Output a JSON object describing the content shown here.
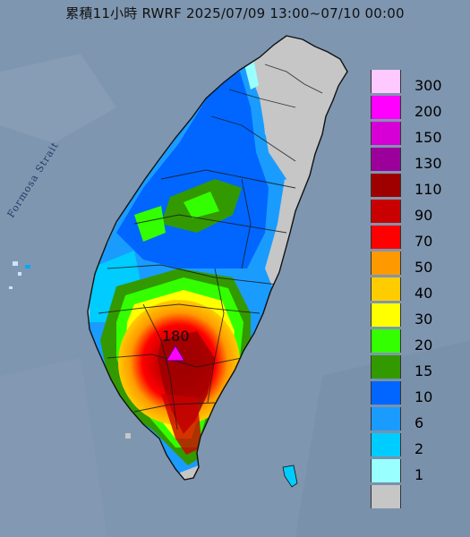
{
  "title": "累積11小時 RWRF 2025/07/09 13:00~07/10 00:00",
  "sea_label": "Formosa Strait",
  "max_marker": {
    "label": "180",
    "icon": "triangle-marker-icon"
  },
  "legend": [
    {
      "label": "300",
      "color": "#ffc8ff"
    },
    {
      "label": "200",
      "color": "#ff00ff"
    },
    {
      "label": "150",
      "color": "#d600d6"
    },
    {
      "label": "130",
      "color": "#9b009b"
    },
    {
      "label": "110",
      "color": "#9e0000"
    },
    {
      "label": "90",
      "color": "#c90000"
    },
    {
      "label": "70",
      "color": "#ff0000"
    },
    {
      "label": "50",
      "color": "#ff9900"
    },
    {
      "label": "40",
      "color": "#ffcc00"
    },
    {
      "label": "30",
      "color": "#ffff00"
    },
    {
      "label": "20",
      "color": "#33ff00"
    },
    {
      "label": "15",
      "color": "#339900"
    },
    {
      "label": "10",
      "color": "#0066ff"
    },
    {
      "label": "6",
      "color": "#1a9cff"
    },
    {
      "label": "2",
      "color": "#00ccff"
    },
    {
      "label": "1",
      "color": "#99ffff"
    },
    {
      "label": "",
      "color": "#c6c6c6"
    }
  ],
  "colors": {
    "sea": "#7f96b0",
    "land_no_rain": "#bfbfbf"
  }
}
